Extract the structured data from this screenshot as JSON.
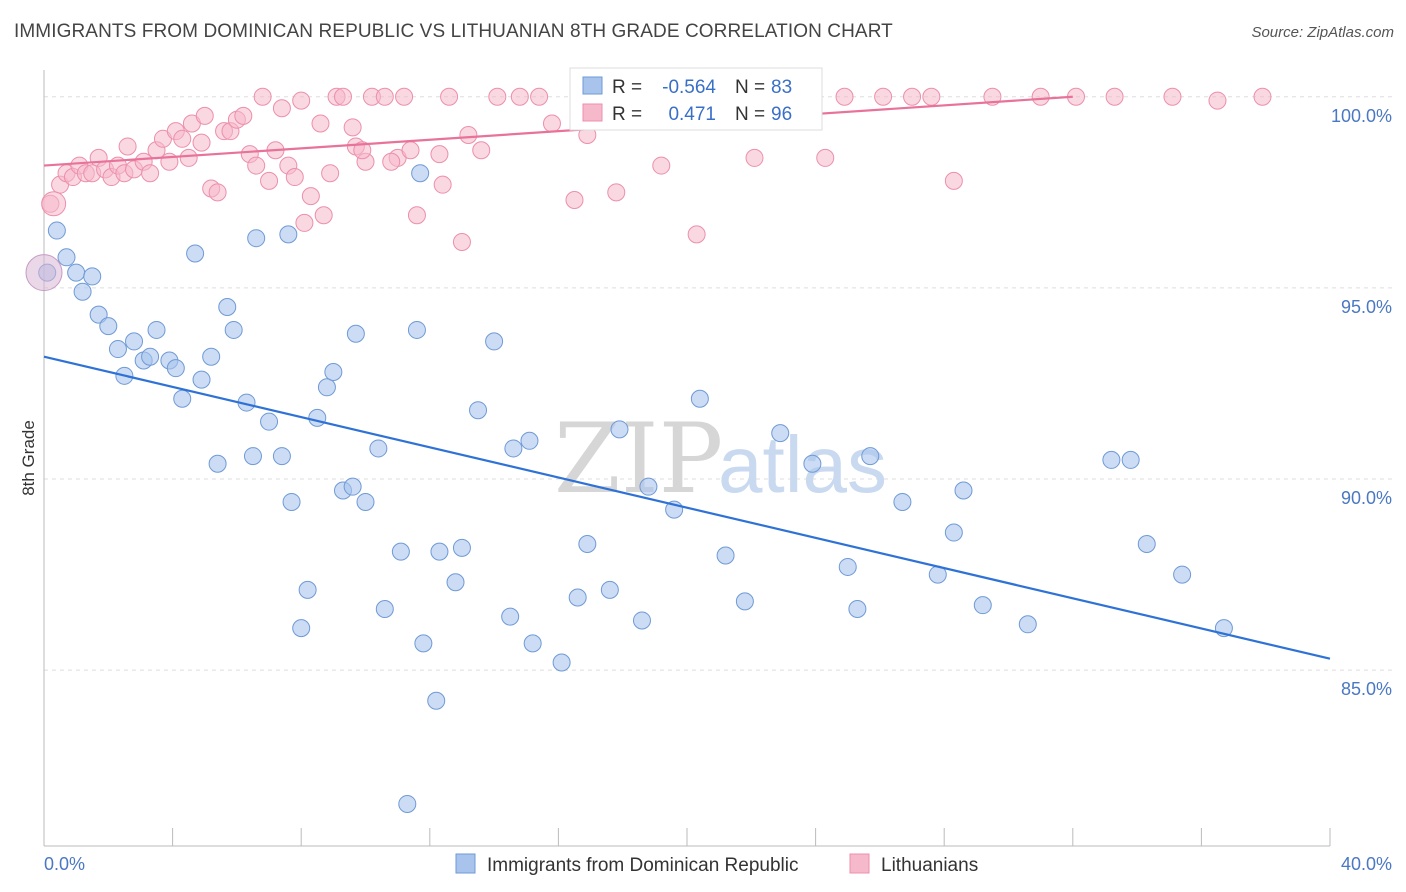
{
  "title": "IMMIGRANTS FROM DOMINICAN REPUBLIC VS LITHUANIAN 8TH GRADE CORRELATION CHART",
  "source": "Source: ZipAtlas.com",
  "watermark": {
    "zip": "ZIP",
    "atlas": "atlas"
  },
  "colors": {
    "blue_fill": "#a8c4ec",
    "blue_stroke": "#6f9ad6",
    "blue_line": "#2f72d6",
    "pink_fill": "#f6b8cb",
    "pink_stroke": "#ec8fab",
    "pink_line": "#e8729a",
    "axis_text": "#4a78c2",
    "grid": "#dddddd"
  },
  "legend": {
    "r_label": "R =",
    "n_label": "N =",
    "series1": {
      "r": "-0.564",
      "n": "83"
    },
    "series2": {
      "r": "0.471",
      "n": "96"
    }
  },
  "chart_data": {
    "type": "scatter",
    "title": "IMMIGRANTS FROM DOMINICAN REPUBLIC VS LITHUANIAN 8TH GRADE CORRELATION CHART",
    "xlabel": "",
    "ylabel": "8th Grade",
    "xlim": [
      0,
      40
    ],
    "ylim": [
      80.4,
      100.7
    ],
    "x_ticks": [
      "0.0%",
      "40.0%"
    ],
    "y_ticks": [
      {
        "value": 100,
        "label": "100.0%"
      },
      {
        "value": 95,
        "label": "95.0%"
      },
      {
        "value": 90,
        "label": "90.0%"
      },
      {
        "value": 85,
        "label": "85.0%"
      }
    ],
    "grid": true,
    "legend_position": "top-center",
    "series": [
      {
        "name": "Immigrants from Dominican Republic",
        "color": "#a8c4ec",
        "trend": {
          "x": [
            0,
            40
          ],
          "y": [
            93.2,
            85.3
          ]
        },
        "points": [
          [
            0.1,
            95.4
          ],
          [
            0.4,
            96.5
          ],
          [
            0.7,
            95.8
          ],
          [
            1.0,
            95.4
          ],
          [
            1.2,
            94.9
          ],
          [
            1.5,
            95.3
          ],
          [
            1.7,
            94.3
          ],
          [
            2.0,
            94.0
          ],
          [
            2.3,
            93.4
          ],
          [
            2.5,
            92.7
          ],
          [
            2.8,
            93.6
          ],
          [
            3.1,
            93.1
          ],
          [
            3.3,
            93.2
          ],
          [
            3.5,
            93.9
          ],
          [
            3.9,
            93.1
          ],
          [
            4.1,
            92.9
          ],
          [
            4.3,
            92.1
          ],
          [
            4.7,
            95.9
          ],
          [
            4.9,
            92.6
          ],
          [
            5.2,
            93.2
          ],
          [
            5.4,
            90.4
          ],
          [
            5.7,
            94.5
          ],
          [
            5.9,
            93.9
          ],
          [
            6.3,
            92.0
          ],
          [
            6.5,
            90.6
          ],
          [
            6.6,
            96.3
          ],
          [
            7.0,
            91.5
          ],
          [
            7.4,
            90.6
          ],
          [
            7.6,
            96.4
          ],
          [
            7.7,
            89.4
          ],
          [
            8.0,
            86.1
          ],
          [
            8.2,
            87.1
          ],
          [
            8.5,
            91.6
          ],
          [
            8.8,
            92.4
          ],
          [
            9.0,
            92.8
          ],
          [
            9.3,
            89.7
          ],
          [
            9.6,
            89.8
          ],
          [
            9.7,
            93.8
          ],
          [
            10.0,
            89.4
          ],
          [
            10.4,
            90.8
          ],
          [
            10.6,
            86.6
          ],
          [
            11.1,
            88.1
          ],
          [
            11.3,
            81.5
          ],
          [
            11.6,
            93.9
          ],
          [
            11.7,
            98.0
          ],
          [
            11.8,
            85.7
          ],
          [
            12.2,
            84.2
          ],
          [
            12.3,
            88.1
          ],
          [
            12.8,
            87.3
          ],
          [
            13.0,
            88.2
          ],
          [
            13.5,
            91.8
          ],
          [
            14.0,
            93.6
          ],
          [
            14.5,
            86.4
          ],
          [
            14.6,
            90.8
          ],
          [
            15.1,
            91.0
          ],
          [
            15.2,
            85.7
          ],
          [
            16.1,
            85.2
          ],
          [
            16.6,
            86.9
          ],
          [
            16.9,
            88.3
          ],
          [
            17.6,
            87.1
          ],
          [
            17.9,
            91.3
          ],
          [
            18.6,
            86.3
          ],
          [
            18.8,
            89.8
          ],
          [
            19.6,
            89.2
          ],
          [
            20.4,
            92.1
          ],
          [
            21.2,
            88.0
          ],
          [
            21.8,
            86.8
          ],
          [
            22.9,
            91.2
          ],
          [
            23.9,
            90.4
          ],
          [
            25.0,
            87.7
          ],
          [
            25.3,
            86.6
          ],
          [
            25.7,
            90.6
          ],
          [
            26.7,
            89.4
          ],
          [
            27.8,
            87.5
          ],
          [
            28.3,
            88.6
          ],
          [
            28.6,
            89.7
          ],
          [
            29.2,
            86.7
          ],
          [
            30.6,
            86.2
          ],
          [
            33.2,
            90.5
          ],
          [
            33.8,
            90.5
          ],
          [
            34.3,
            88.3
          ],
          [
            35.4,
            87.5
          ],
          [
            36.7,
            86.1
          ]
        ]
      },
      {
        "name": "Lithuanians",
        "color": "#f6b8cb",
        "trend": {
          "x": [
            0,
            32
          ],
          "y": [
            98.2,
            100.0
          ]
        },
        "points": [
          [
            0.2,
            97.2
          ],
          [
            0.5,
            97.7
          ],
          [
            0.7,
            98.0
          ],
          [
            0.9,
            97.9
          ],
          [
            1.1,
            98.2
          ],
          [
            1.3,
            98.0
          ],
          [
            1.5,
            98.0
          ],
          [
            1.7,
            98.4
          ],
          [
            1.9,
            98.1
          ],
          [
            2.1,
            97.9
          ],
          [
            2.3,
            98.2
          ],
          [
            2.5,
            98.0
          ],
          [
            2.6,
            98.7
          ],
          [
            2.8,
            98.1
          ],
          [
            3.1,
            98.3
          ],
          [
            3.3,
            98.0
          ],
          [
            3.5,
            98.6
          ],
          [
            3.7,
            98.9
          ],
          [
            3.9,
            98.3
          ],
          [
            4.1,
            99.1
          ],
          [
            4.3,
            98.9
          ],
          [
            4.5,
            98.4
          ],
          [
            4.6,
            99.3
          ],
          [
            4.9,
            98.8
          ],
          [
            5.0,
            99.5
          ],
          [
            5.2,
            97.6
          ],
          [
            5.4,
            97.5
          ],
          [
            5.6,
            99.1
          ],
          [
            5.8,
            99.1
          ],
          [
            6.0,
            99.4
          ],
          [
            6.2,
            99.5
          ],
          [
            6.4,
            98.5
          ],
          [
            6.6,
            98.2
          ],
          [
            6.8,
            100.0
          ],
          [
            7.0,
            97.8
          ],
          [
            7.2,
            98.6
          ],
          [
            7.4,
            99.7
          ],
          [
            7.6,
            98.2
          ],
          [
            7.8,
            97.9
          ],
          [
            8.0,
            99.9
          ],
          [
            8.1,
            96.7
          ],
          [
            8.3,
            97.4
          ],
          [
            8.6,
            99.3
          ],
          [
            8.7,
            96.9
          ],
          [
            8.9,
            98.0
          ],
          [
            9.1,
            100.0
          ],
          [
            9.3,
            100.0
          ],
          [
            9.6,
            99.2
          ],
          [
            9.7,
            98.7
          ],
          [
            10.0,
            98.3
          ],
          [
            10.2,
            100.0
          ],
          [
            10.6,
            100.0
          ],
          [
            11.0,
            98.4
          ],
          [
            11.2,
            100.0
          ],
          [
            11.4,
            98.6
          ],
          [
            11.6,
            96.9
          ],
          [
            12.3,
            98.5
          ],
          [
            12.6,
            100.0
          ],
          [
            13.0,
            96.2
          ],
          [
            13.2,
            99.0
          ],
          [
            13.6,
            98.6
          ],
          [
            14.1,
            100.0
          ],
          [
            14.8,
            100.0
          ],
          [
            15.4,
            100.0
          ],
          [
            15.8,
            99.3
          ],
          [
            16.5,
            97.3
          ],
          [
            17.2,
            100.0
          ],
          [
            17.8,
            97.5
          ],
          [
            18.6,
            100.0
          ],
          [
            19.4,
            100.0
          ],
          [
            20.3,
            96.4
          ],
          [
            21.1,
            100.0
          ],
          [
            22.0,
            100.0
          ],
          [
            22.9,
            100.0
          ],
          [
            23.9,
            100.0
          ],
          [
            24.9,
            100.0
          ],
          [
            26.1,
            100.0
          ],
          [
            27.0,
            100.0
          ],
          [
            27.6,
            100.0
          ],
          [
            28.3,
            97.8
          ],
          [
            32.1,
            100.0
          ],
          [
            33.3,
            100.0
          ],
          [
            35.1,
            100.0
          ],
          [
            37.9,
            100.0
          ],
          [
            36.5,
            99.9
          ],
          [
            31.0,
            100.0
          ],
          [
            29.5,
            100.0
          ],
          [
            24.3,
            98.4
          ],
          [
            22.1,
            98.4
          ],
          [
            21.5,
            100.0
          ],
          [
            19.2,
            98.2
          ],
          [
            18.1,
            100.0
          ],
          [
            16.9,
            99.0
          ],
          [
            12.4,
            97.7
          ],
          [
            10.8,
            98.3
          ],
          [
            9.9,
            98.6
          ]
        ]
      }
    ]
  },
  "bottom_legend": {
    "series1": "Immigrants from Dominican Republic",
    "series2": "Lithuanians"
  }
}
